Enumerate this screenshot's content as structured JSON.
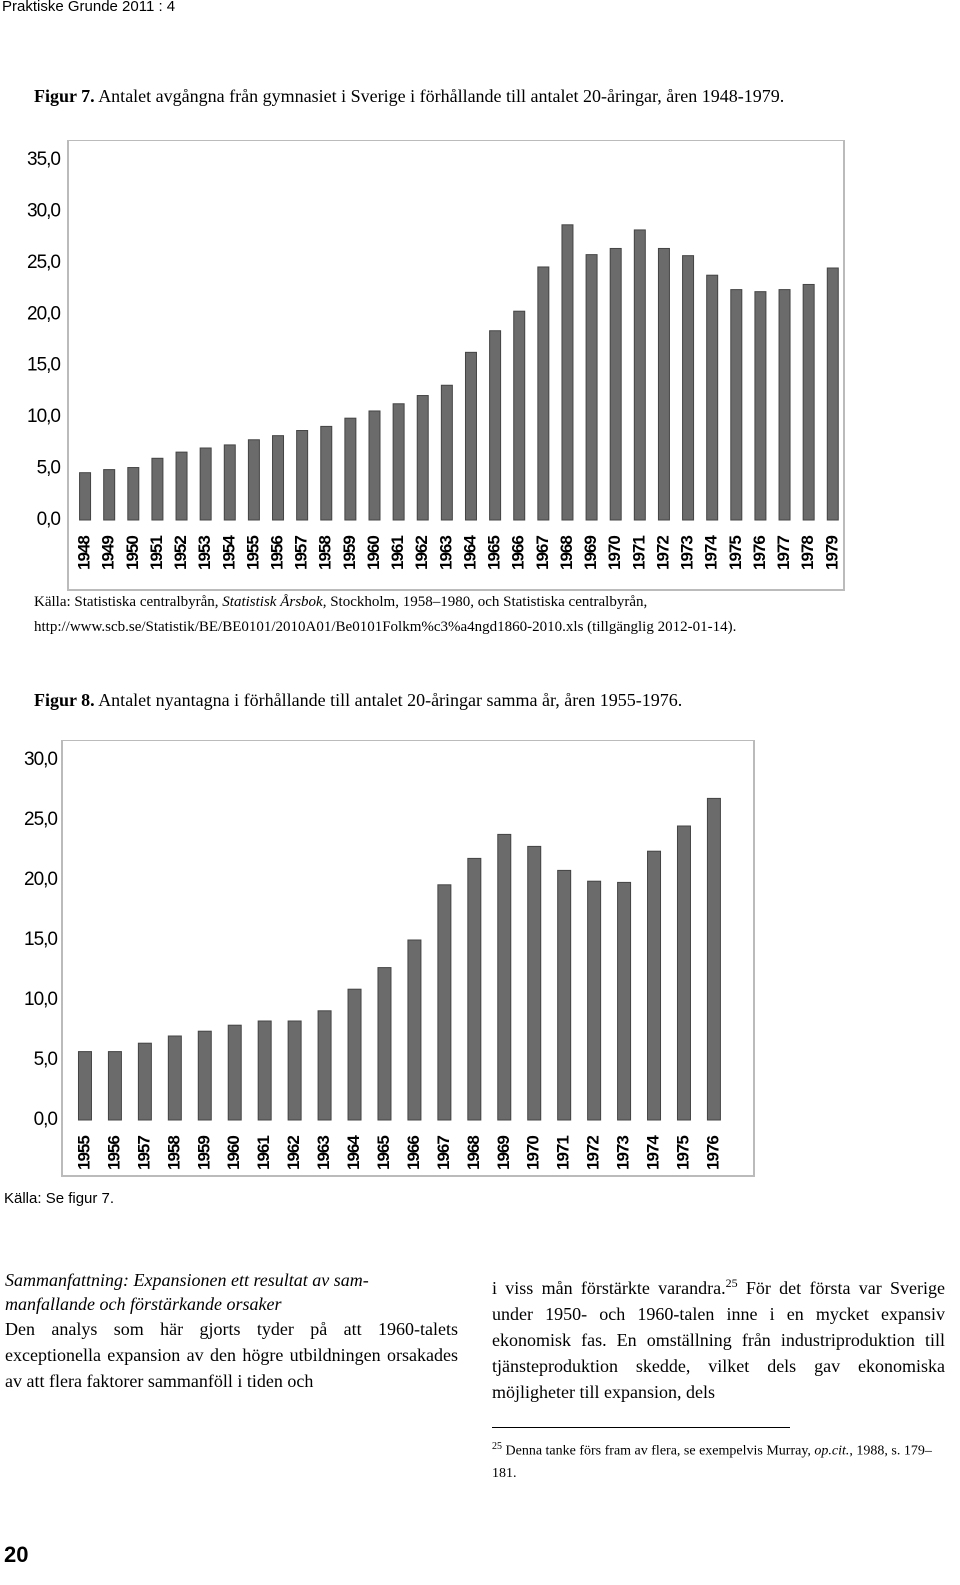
{
  "header": "Praktiske Grunde 2011 : 4",
  "figures": [
    {
      "label": "Figur 7.",
      "caption": "Antalet avgångna från gymnasiet i Sverige i förhållande till antalet 20-åringar, åren 1948-1979."
    },
    {
      "label": "Figur 8.",
      "caption": "Antalet nyantagna i förhållande till antalet 20-åringar samma år, åren 1955-1976."
    }
  ],
  "chart_data": [
    {
      "type": "bar",
      "color": "#6b6b6b",
      "categories": [
        "1948",
        "1949",
        "1950",
        "1951",
        "1952",
        "1953",
        "1954",
        "1955",
        "1956",
        "1957",
        "1958",
        "1959",
        "1960",
        "1961",
        "1962",
        "1963",
        "1964",
        "1965",
        "1966",
        "1967",
        "1968",
        "1969",
        "1970",
        "1971",
        "1972",
        "1973",
        "1974",
        "1975",
        "1976",
        "1977",
        "1978",
        "1979"
      ],
      "values": [
        4.6,
        4.9,
        5.1,
        6.0,
        6.6,
        7.0,
        7.3,
        7.8,
        8.2,
        8.7,
        9.1,
        9.9,
        10.6,
        11.3,
        12.1,
        13.1,
        16.3,
        18.4,
        20.3,
        24.6,
        28.7,
        25.8,
        26.4,
        28.2,
        26.4,
        25.7,
        23.8,
        22.4,
        22.2,
        22.4,
        22.9,
        24.5
      ],
      "ylim": [
        0,
        35
      ],
      "yticks": [
        {
          "value": 0,
          "label": "0,0"
        },
        {
          "value": 5,
          "label": "5,0"
        },
        {
          "value": 10,
          "label": "10,0"
        },
        {
          "value": 15,
          "label": "15,0"
        },
        {
          "value": 20,
          "label": "20,0"
        },
        {
          "value": 25,
          "label": "25,0"
        },
        {
          "value": 30,
          "label": "30,0"
        },
        {
          "value": 35,
          "label": "35,0"
        }
      ],
      "grid": false
    },
    {
      "type": "bar",
      "color": "#6b6b6b",
      "categories": [
        "1955",
        "1956",
        "1957",
        "1958",
        "1959",
        "1960",
        "1961",
        "1962",
        "1963",
        "1964",
        "1965",
        "1966",
        "1967",
        "1968",
        "1969",
        "1970",
        "1971",
        "1972",
        "1973",
        "1974",
        "1975",
        "1976"
      ],
      "values": [
        5.7,
        5.7,
        6.4,
        7.0,
        7.4,
        7.9,
        8.25,
        8.25,
        9.1,
        10.9,
        12.7,
        15.0,
        19.6,
        21.8,
        23.8,
        22.8,
        20.8,
        19.9,
        19.8,
        22.4,
        24.5,
        26.8
      ],
      "ylim": [
        0,
        30
      ],
      "yticks": [
        {
          "value": 0,
          "label": "0,0"
        },
        {
          "value": 5,
          "label": "5,0"
        },
        {
          "value": 10,
          "label": "10,0"
        },
        {
          "value": 15,
          "label": "15,0"
        },
        {
          "value": 20,
          "label": "20,0"
        },
        {
          "value": 25,
          "label": "25,0"
        },
        {
          "value": 30,
          "label": "30,0"
        }
      ],
      "grid": false
    }
  ],
  "source_7": {
    "text_1": "Källa: Statistiska centralbyrån, ",
    "italic": "Statistisk Årsbok",
    "text_2": ", Stockholm, 1958–1980, och Statistiska centralbyrån,",
    "url": "http://www.scb.se/Statistik/BE/BE0101/2010A01/Be0101Folkm%c3%a4ngd1860-2010.xls (tillgänglig 2012-01-14)."
  },
  "source_8": "Källa: Se figur 7.",
  "section": {
    "heading": [
      "Sammanfattning: Expansionen ett resultat av sam-",
      "manfallande och förstärkande orsaker"
    ],
    "left": "Den analys som här gjorts tyder på att 1960-talets exceptionella expansion av den högre utbildningen orsakades av att flera faktorer sammanföll i tiden och",
    "right_1": "i viss mån förstärkte varandra.",
    "right_note": "25",
    "right_2": " För det första var Sverige under 1950- och 1960-talen inne i en mycket expansiv ekonomisk fas. En omställning från industriproduktion till tjänsteproduktion skedde, vilket dels gav ekonomiska möjligheter till expansion, dels"
  },
  "footnote": {
    "number": "25",
    "text_1": " Denna tanke förs fram av flera, se exempelvis Murray, ",
    "italic": "op.cit.",
    "text_2": ", 1988, s. 179–181."
  },
  "page_number": "20"
}
